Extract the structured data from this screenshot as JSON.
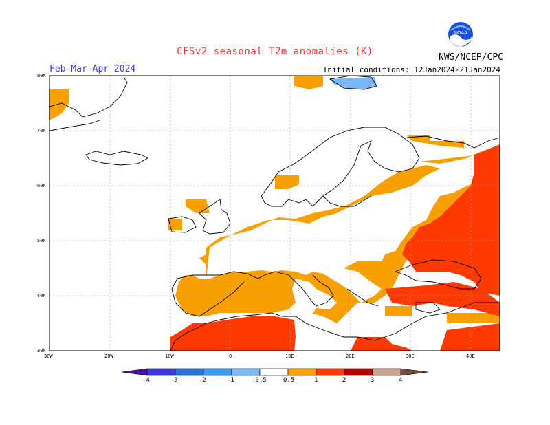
{
  "header": {
    "title": "CFSv2 seasonal T2m anomalies (K)",
    "season": "Feb-Mar-Apr 2024",
    "initial_conditions": "Initial conditions: 12Jan2024-21Jan2024",
    "agency": "NWS/NCEP/CPC",
    "logo_text": "NOAA"
  },
  "axes": {
    "lat_labels": [
      "80N",
      "70N",
      "60N",
      "50N",
      "40N",
      "30N"
    ],
    "lon_labels": [
      "30W",
      "20W",
      "10W",
      "0",
      "10E",
      "20E",
      "30E",
      "40E"
    ]
  },
  "colorbar": {
    "labels": [
      "-4",
      "-3",
      "-2",
      "-1",
      "-0.5",
      "0.5",
      "1",
      "2",
      "3",
      "4"
    ],
    "colors": [
      "#4a0fa0",
      "#3a3acf",
      "#2a6fd4",
      "#3a9af0",
      "#7ab8f5",
      "#ffffff",
      "#f7a000",
      "#ff3a00",
      "#b00000",
      "#c8a090",
      "#7a4a3a"
    ]
  },
  "anomaly_colors": {
    "0.5_to_1": "#f7a000",
    "1_to_2": "#ff3a00",
    "-0.5_to_-1": "#7ab8f5"
  }
}
